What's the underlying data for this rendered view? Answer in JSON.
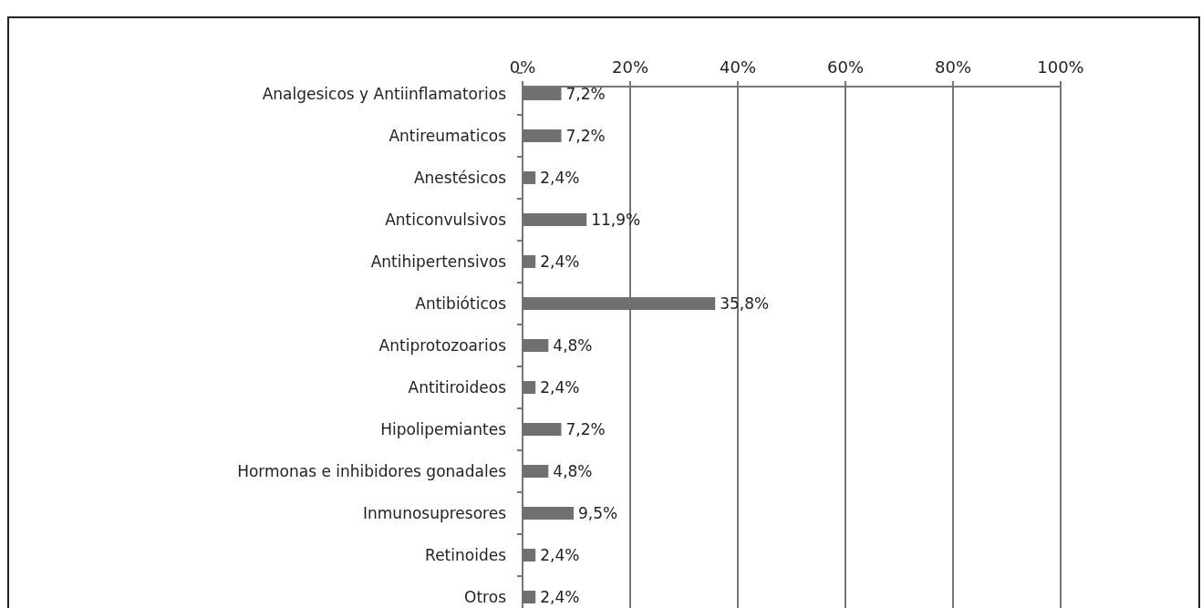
{
  "chart_data": {
    "type": "bar",
    "orientation": "horizontal",
    "categories": [
      "Analgesicos y Antiinflamatorios",
      "Antireumaticos",
      "Anestésicos",
      "Anticonvulsivos",
      "Antihipertensivos",
      "Antibióticos",
      "Antiprotozoarios",
      "Antitiroideos",
      "Hipolipemiantes",
      "Hormonas e inhibidores gonadales",
      "Inmunosupresores",
      "Retinoides",
      "Otros"
    ],
    "values": [
      7.2,
      7.2,
      2.4,
      11.9,
      2.4,
      35.8,
      4.8,
      2.4,
      7.2,
      4.8,
      9.5,
      2.4,
      2.4
    ],
    "value_labels": [
      "7,2%",
      "7,2%",
      "2,4%",
      "11,9%",
      "2,4%",
      "35,8%",
      "4,8%",
      "2,4%",
      "7,2%",
      "4,8%",
      "9,5%",
      "2,4%",
      "2,4%"
    ],
    "color": "#707070",
    "xlim": [
      0,
      100
    ],
    "xticks": [
      {
        "value": 0,
        "label": "0%"
      },
      {
        "value": 20,
        "label": "20%"
      },
      {
        "value": 40,
        "label": "40%"
      },
      {
        "value": 60,
        "label": "60%"
      },
      {
        "value": 80,
        "label": "80%"
      },
      {
        "value": 100,
        "label": "100%"
      }
    ],
    "grid": "x"
  }
}
